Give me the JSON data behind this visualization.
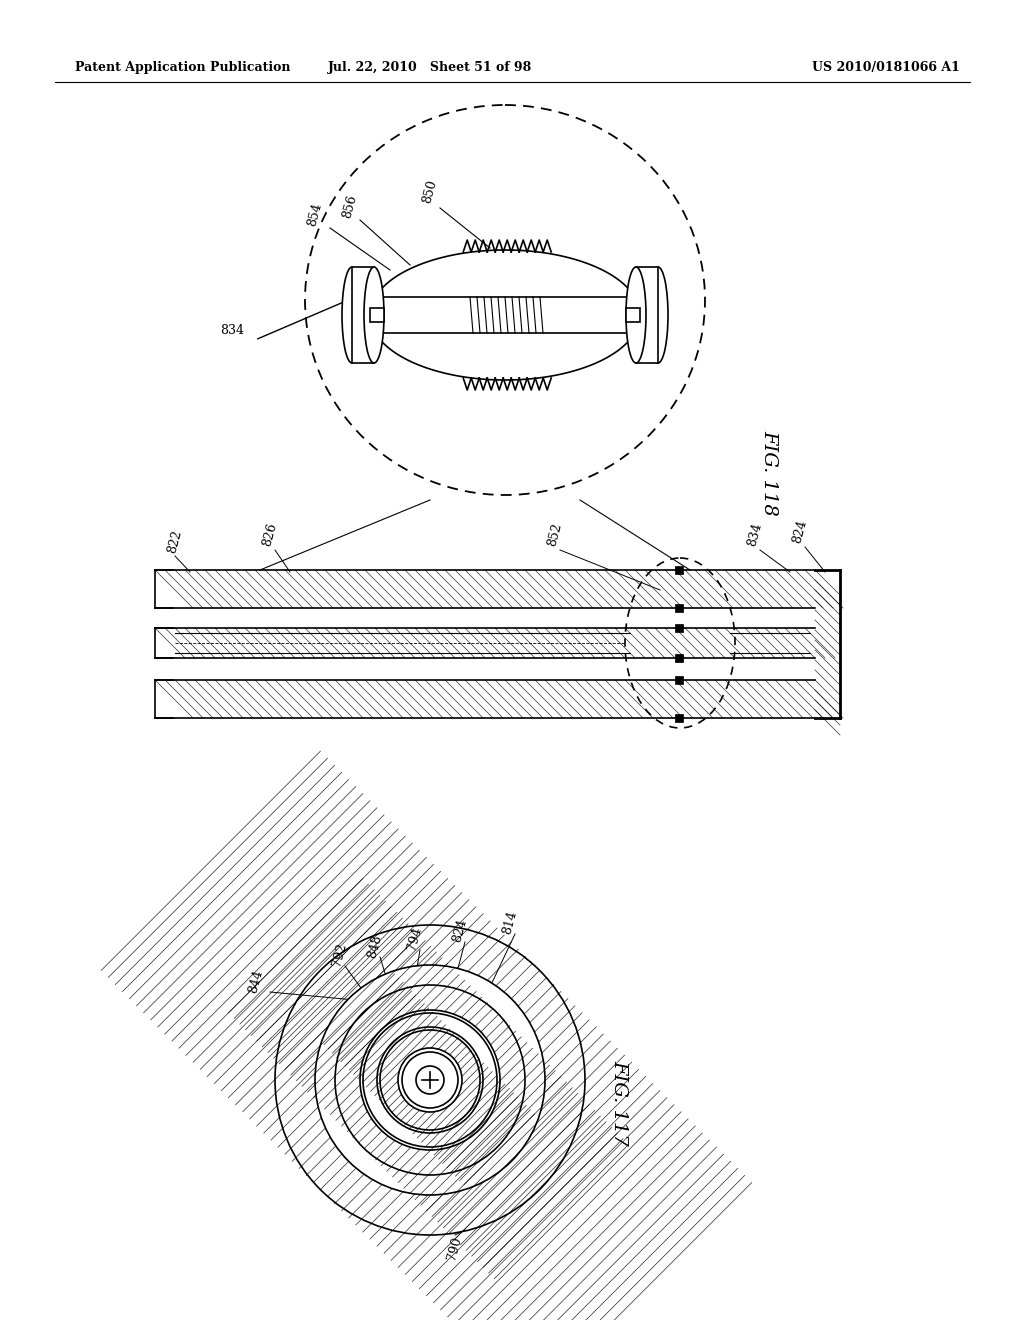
{
  "header_left": "Patent Application Publication",
  "header_mid": "Jul. 22, 2010   Sheet 51 of 98",
  "header_right": "US 2010/0181066 A1",
  "fig118_label": "FIG. 118",
  "fig117_label": "FIG. 117",
  "bg_color": "#ffffff",
  "line_color": "#000000"
}
